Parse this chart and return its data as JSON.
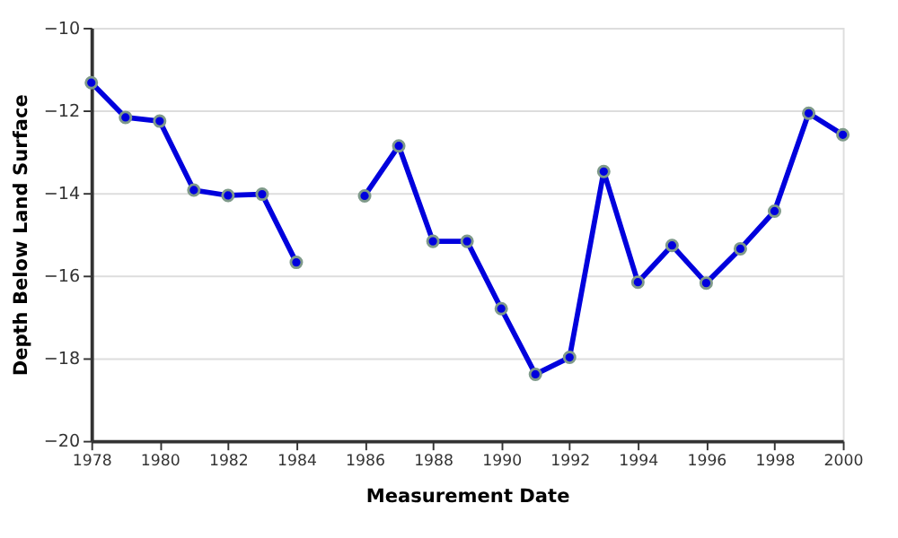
{
  "chart_data": {
    "type": "line",
    "xlabel": "Measurement Date",
    "ylabel": "Depth Below Land Surface",
    "x": [
      1978,
      1979,
      1980,
      1981,
      1982,
      1983,
      1984,
      1985,
      1986,
      1987,
      1988,
      1989,
      1990,
      1991,
      1992,
      1993,
      1994,
      1995,
      1996,
      1997,
      1998,
      1999,
      2000
    ],
    "series": [
      {
        "color": "#0000dd",
        "values": [
          -11.33,
          -12.17,
          -12.26,
          -13.93,
          -14.06,
          -14.03,
          -15.68,
          null,
          -14.07,
          -12.86,
          -15.17,
          -15.17,
          -16.8,
          -18.39,
          -17.98,
          -13.48,
          -16.16,
          -15.27,
          -16.18,
          -15.35,
          -14.44,
          -12.07,
          -12.59
        ]
      }
    ],
    "xlim": [
      1978,
      2000
    ],
    "xticks": [
      1978,
      1980,
      1982,
      1984,
      1986,
      1988,
      1990,
      1992,
      1994,
      1996,
      1998,
      2000
    ],
    "ylim": [
      -20,
      -10
    ],
    "yticks": [
      -20,
      -18,
      -16,
      -14,
      -12,
      -10
    ],
    "grid": "y",
    "marker": "circle",
    "line_style": "solid"
  }
}
